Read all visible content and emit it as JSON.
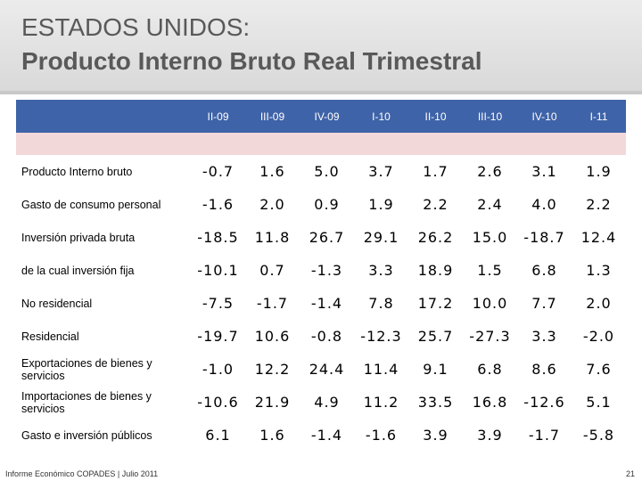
{
  "title": {
    "line1": "ESTADOS UNIDOS:",
    "line2": "Producto Interno Bruto Real Trimestral"
  },
  "table": {
    "columns": [
      "II-09",
      "III-09",
      "IV-09",
      "I-10",
      "II-10",
      "III-10",
      "IV-10",
      "I-11"
    ],
    "rows": [
      {
        "label": "Producto Interno bruto",
        "values": [
          "-0.7",
          "1.6",
          "5.0",
          "3.7",
          "1.7",
          "2.6",
          "3.1",
          "1.9"
        ]
      },
      {
        "label": "Gasto de consumo personal",
        "values": [
          "-1.6",
          "2.0",
          "0.9",
          "1.9",
          "2.2",
          "2.4",
          "4.0",
          "2.2"
        ]
      },
      {
        "label": "Inversión privada bruta",
        "values": [
          "-18.5",
          "11.8",
          "26.7",
          "29.1",
          "26.2",
          "15.0",
          "-18.7",
          "12.4"
        ]
      },
      {
        "label": "de la cual inversión fija",
        "values": [
          "-10.1",
          "0.7",
          "-1.3",
          "3.3",
          "18.9",
          "1.5",
          "6.8",
          "1.3"
        ]
      },
      {
        "label": "No residencial",
        "values": [
          "-7.5",
          "-1.7",
          "-1.4",
          "7.8",
          "17.2",
          "10.0",
          "7.7",
          "2.0"
        ]
      },
      {
        "label": "Residencial",
        "values": [
          "-19.7",
          "10.6",
          "-0.8",
          "-12.3",
          "25.7",
          "-27.3",
          "3.3",
          "-2.0"
        ]
      },
      {
        "label": "Exportaciones de bienes y servicios",
        "values": [
          "-1.0",
          "12.2",
          "24.4",
          "11.4",
          "9.1",
          "6.8",
          "8.6",
          "7.6"
        ]
      },
      {
        "label": "Importaciones de bienes y servicios",
        "values": [
          "-10.6",
          "21.9",
          "4.9",
          "11.2",
          "33.5",
          "16.8",
          "-12.6",
          "5.1"
        ]
      },
      {
        "label": "Gasto e inversión públicos",
        "values": [
          "6.1",
          "1.6",
          "-1.4",
          "-1.6",
          "3.9",
          "3.9",
          "-1.7",
          "-5.8"
        ]
      }
    ]
  },
  "footer": {
    "left": "Informe Económico COPADES  |  Julio 2011",
    "page": "21"
  },
  "colors": {
    "header_blue": "#3f63a8",
    "pink_band": "#f3d8d9",
    "title_band": "#d9d9d9"
  }
}
